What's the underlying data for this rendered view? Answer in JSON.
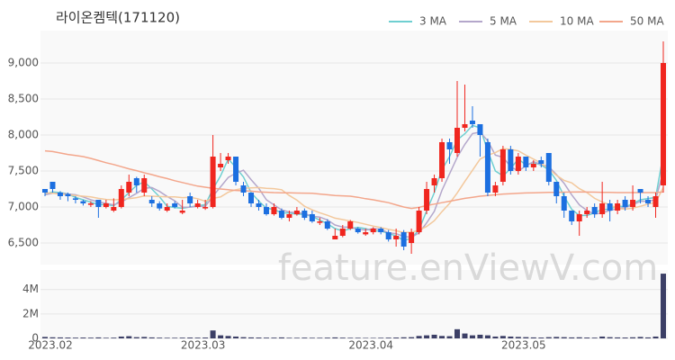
{
  "chart_data": {
    "type": "candlestick",
    "title": "라이온켐텍(171120)",
    "watermark": "feature.enViewV.com",
    "categories": [
      "2023.02",
      null,
      null,
      null,
      null,
      null,
      null,
      null,
      null,
      null,
      null,
      null,
      null,
      null,
      null,
      null,
      null,
      null,
      null,
      null,
      "2023.03",
      null,
      null,
      null,
      null,
      null,
      null,
      null,
      null,
      null,
      null,
      null,
      null,
      null,
      null,
      null,
      null,
      null,
      null,
      null,
      null,
      null,
      "2023.04",
      null,
      null,
      null,
      null,
      null,
      null,
      null,
      null,
      null,
      null,
      null,
      null,
      null,
      null,
      null,
      null,
      null,
      null,
      null,
      "2023.05",
      null,
      null,
      null,
      null,
      null,
      null,
      null,
      null,
      null,
      null,
      null,
      null,
      null,
      null,
      null,
      null,
      null,
      null,
      null
    ],
    "open": [
      7250,
      7350,
      7200,
      7180,
      7120,
      7080,
      7030,
      7100,
      7000,
      6950,
      7000,
      7200,
      7400,
      7200,
      7100,
      7050,
      6950,
      7050,
      6920,
      7150,
      7000,
      6980,
      7000,
      7550,
      7650,
      7700,
      7300,
      7200,
      7050,
      7000,
      6900,
      6950,
      6850,
      6900,
      6950,
      6900,
      6780,
      6800,
      6550,
      6600,
      6700,
      6700,
      6620,
      6650,
      6700,
      6650,
      6550,
      6650,
      6500,
      6650,
      6950,
      7300,
      7400,
      7900,
      7750,
      8100,
      8200,
      8150,
      7900,
      7200,
      7350,
      7800,
      7500,
      7700,
      7550,
      7650,
      7750,
      7350,
      7150,
      6950,
      6800,
      6900,
      7000,
      6900,
      7050,
      6950,
      7100,
      7000,
      7250,
      7100,
      7000,
      7300
    ],
    "high": [
      7250,
      7350,
      7220,
      7200,
      7150,
      7100,
      7080,
      7100,
      7100,
      7120,
      7300,
      7450,
      7420,
      7450,
      7150,
      7080,
      7050,
      7080,
      7100,
      7200,
      7100,
      7100,
      8000,
      7750,
      7750,
      7700,
      7350,
      7200,
      7100,
      7050,
      7050,
      6980,
      6950,
      7000,
      6980,
      6950,
      6850,
      6830,
      6700,
      6750,
      6820,
      6720,
      6700,
      6720,
      6720,
      6680,
      6700,
      6680,
      6700,
      7000,
      7350,
      7450,
      7950,
      7950,
      8750,
      8700,
      8400,
      8150,
      7950,
      7350,
      7850,
      7850,
      7750,
      7700,
      7650,
      7700,
      7750,
      7350,
      7200,
      6950,
      6950,
      7000,
      7050,
      7350,
      7100,
      7100,
      7150,
      7300,
      7250,
      7150,
      7200,
      9300
    ],
    "low": [
      7150,
      7200,
      7100,
      7080,
      7050,
      7020,
      7000,
      6850,
      6980,
      6930,
      6980,
      7150,
      7200,
      7150,
      7000,
      6950,
      6930,
      6980,
      6900,
      7000,
      6980,
      6960,
      6980,
      7500,
      7600,
      7300,
      7150,
      7000,
      6950,
      6880,
      6880,
      6830,
      6800,
      6880,
      6820,
      6780,
      6750,
      6680,
      6550,
      6580,
      6680,
      6630,
      6600,
      6620,
      6620,
      6520,
      6450,
      6400,
      6350,
      6620,
      6900,
      7200,
      7350,
      7600,
      7700,
      8050,
      8100,
      7700,
      7150,
      7150,
      7300,
      7450,
      7450,
      7500,
      7500,
      7550,
      7300,
      7050,
      6850,
      6750,
      6600,
      6850,
      6850,
      6850,
      6800,
      6900,
      6950,
      6950,
      7050,
      7000,
      6850,
      7200
    ],
    "close": [
      7200,
      7250,
      7150,
      7150,
      7100,
      7050,
      7050,
      7000,
      7050,
      7000,
      7250,
      7350,
      7300,
      7400,
      7050,
      6980,
      7000,
      7000,
      6950,
      7050,
      7050,
      7000,
      7700,
      7600,
      7700,
      7350,
      7200,
      7050,
      7000,
      6900,
      7000,
      6850,
      6900,
      6950,
      6850,
      6800,
      6800,
      6700,
      6600,
      6700,
      6800,
      6650,
      6650,
      6700,
      6650,
      6550,
      6600,
      6450,
      6650,
      6950,
      7250,
      7400,
      7900,
      7800,
      8100,
      8150,
      8150,
      8000,
      7200,
      7300,
      7800,
      7500,
      7700,
      7550,
      7600,
      7600,
      7350,
      7150,
      6950,
      6800,
      6900,
      6950,
      6900,
      7050,
      6950,
      7050,
      7000,
      7100,
      7200,
      7050,
      7150,
      9000
    ],
    "up_color": "#f0261f",
    "down_color": "#1c6fe0",
    "ylim": [
      6200,
      9450
    ],
    "yticks": [
      {
        "value": 6500,
        "label": "6,500"
      },
      {
        "value": 7000,
        "label": "7,000"
      },
      {
        "value": 7500,
        "label": "7,500"
      },
      {
        "value": 8000,
        "label": "8,000"
      },
      {
        "value": 8500,
        "label": "8,500"
      },
      {
        "value": 9000,
        "label": "9,000"
      }
    ],
    "grid": true,
    "legend": "top-right",
    "ma_series": [
      {
        "name": "3 MA",
        "color": "#6fcfd1",
        "values": [
          7180,
          7210,
          7200,
          7183,
          7133,
          7100,
          7067,
          7033,
          7033,
          7017,
          7100,
          7200,
          7300,
          7350,
          7250,
          7143,
          7010,
          6993,
          6983,
          7000,
          7017,
          7033,
          7250,
          7433,
          7667,
          7550,
          7417,
          7200,
          7083,
          6983,
          6967,
          6917,
          6917,
          6900,
          6900,
          6867,
          6817,
          6767,
          6700,
          6667,
          6700,
          6717,
          6700,
          6667,
          6667,
          6633,
          6600,
          6533,
          6567,
          6683,
          6950,
          7200,
          7517,
          7700,
          7933,
          8017,
          8133,
          8100,
          7783,
          7500,
          7433,
          7533,
          7667,
          7583,
          7617,
          7583,
          7517,
          7367,
          7150,
          6967,
          6883,
          6883,
          6917,
          6967,
          6967,
          7017,
          7000,
          7050,
          7100,
          7117,
          7133,
          7733
        ]
      },
      {
        "name": "5 MA",
        "color": "#b4a7cb",
        "values": [
          7170,
          7190,
          7190,
          7180,
          7170,
          7140,
          7100,
          7070,
          7050,
          7030,
          7070,
          7130,
          7190,
          7260,
          7270,
          7216,
          7146,
          7086,
          6996,
          6996,
          7010,
          7010,
          7150,
          7280,
          7410,
          7470,
          7510,
          7380,
          7260,
          7100,
          7030,
          6960,
          6930,
          6920,
          6910,
          6870,
          6860,
          6820,
          6750,
          6720,
          6720,
          6690,
          6680,
          6700,
          6690,
          6640,
          6630,
          6590,
          6580,
          6640,
          6780,
          6940,
          7230,
          7460,
          7690,
          7870,
          8020,
          8040,
          7920,
          7720,
          7690,
          7560,
          7500,
          7570,
          7630,
          7590,
          7560,
          7450,
          7330,
          7170,
          7030,
          6950,
          6900,
          6920,
          6950,
          6980,
          6990,
          7030,
          7080,
          7080,
          7100,
          7500
        ]
      },
      {
        "name": "10 MA",
        "color": "#f3c89c",
        "values": [
          7200,
          7190,
          7180,
          7170,
          7160,
          7150,
          7140,
          7120,
          7105,
          7100,
          7105,
          7115,
          7130,
          7155,
          7150,
          7145,
          7140,
          7140,
          7130,
          7135,
          7115,
          7080,
          7120,
          7140,
          7205,
          7240,
          7260,
          7265,
          7270,
          7260,
          7255,
          7240,
          7160,
          7095,
          7010,
          6960,
          6920,
          6885,
          6845,
          6825,
          6805,
          6785,
          6760,
          6735,
          6715,
          6690,
          6670,
          6645,
          6650,
          6675,
          6730,
          6810,
          6935,
          7050,
          7195,
          7355,
          7510,
          7665,
          7720,
          7755,
          7810,
          7800,
          7780,
          7720,
          7665,
          7610,
          7530,
          7440,
          7370,
          7335,
          7255,
          7200,
          7120,
          7070,
          7030,
          6980,
          6970,
          6985,
          7010,
          7040,
          7065,
          7270
        ]
      },
      {
        "name": "50 MA",
        "color": "#f3a68b",
        "values": [
          7780,
          7770,
          7750,
          7730,
          7715,
          7700,
          7675,
          7645,
          7615,
          7590,
          7560,
          7530,
          7505,
          7475,
          7450,
          7420,
          7395,
          7365,
          7340,
          7315,
          7290,
          7275,
          7260,
          7250,
          7240,
          7230,
          7225,
          7220,
          7210,
          7205,
          7200,
          7198,
          7196,
          7194,
          7192,
          7190,
          7180,
          7170,
          7160,
          7155,
          7150,
          7135,
          7115,
          7100,
          7080,
          7060,
          7030,
          7000,
          6980,
          6995,
          7020,
          7040,
          7060,
          7080,
          7100,
          7120,
          7135,
          7150,
          7160,
          7170,
          7180,
          7185,
          7190,
          7195,
          7198,
          7200,
          7202,
          7204,
          7206,
          7208,
          7210,
          7208,
          7206,
          7204,
          7202,
          7200,
          7200,
          7200,
          7200,
          7200,
          7200,
          7210
        ]
      }
    ],
    "volume": {
      "color": "#3c3f66",
      "ylim": [
        0,
        5600000
      ],
      "yticks": [
        0,
        {
          "value": 2000000,
          "label": "2M"
        },
        {
          "value": 4000000,
          "label": "4M"
        }
      ],
      "values": [
        120000,
        90000,
        80000,
        70000,
        60000,
        70000,
        60000,
        80000,
        50000,
        60000,
        150000,
        180000,
        100000,
        120000,
        80000,
        60000,
        50000,
        50000,
        60000,
        70000,
        60000,
        70000,
        650000,
        250000,
        200000,
        150000,
        100000,
        80000,
        70000,
        60000,
        60000,
        80000,
        50000,
        50000,
        60000,
        50000,
        50000,
        60000,
        80000,
        60000,
        50000,
        50000,
        40000,
        40000,
        50000,
        60000,
        70000,
        90000,
        100000,
        200000,
        250000,
        300000,
        200000,
        180000,
        750000,
        400000,
        250000,
        300000,
        250000,
        150000,
        200000,
        150000,
        120000,
        100000,
        80000,
        70000,
        100000,
        120000,
        100000,
        80000,
        90000,
        70000,
        60000,
        150000,
        100000,
        80000,
        70000,
        90000,
        120000,
        80000,
        150000,
        5300000
      ]
    }
  }
}
